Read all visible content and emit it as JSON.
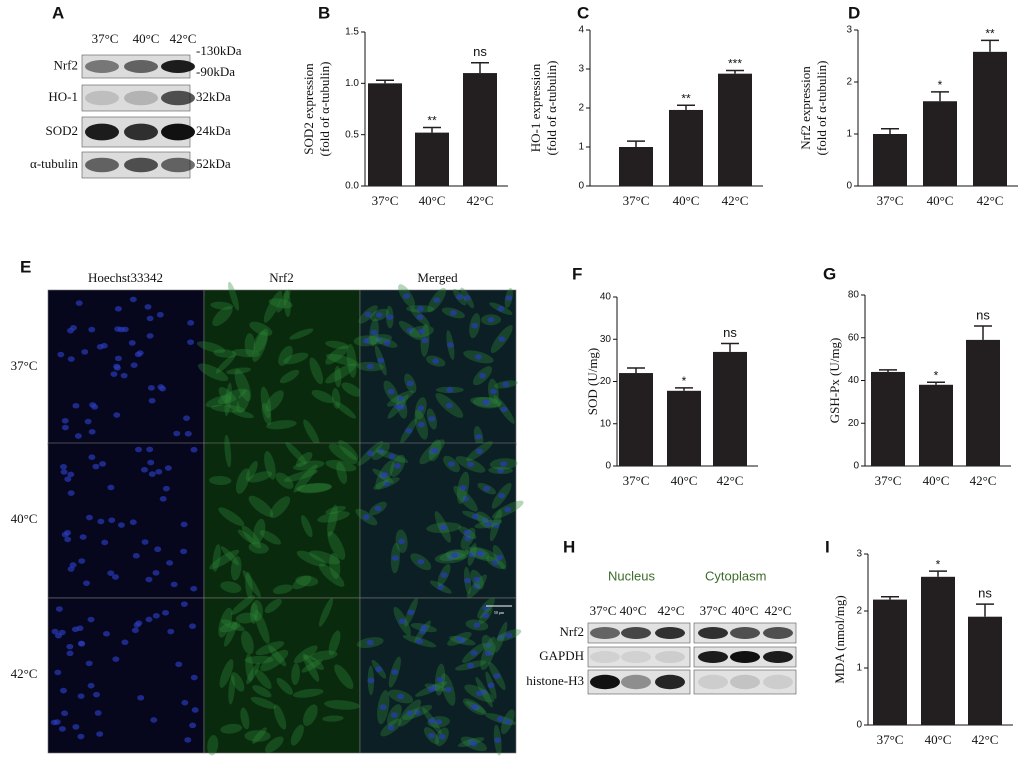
{
  "chart_data": [
    {
      "type": "bar",
      "label": "B",
      "ylabel": [
        "SOD2 expression",
        "(fold of α-tubulin)"
      ],
      "categories": [
        "37°C",
        "40°C",
        "42°C"
      ],
      "values": [
        1.0,
        0.52,
        1.1
      ],
      "errors": [
        0.03,
        0.05,
        0.1
      ],
      "significance": [
        null,
        "**",
        "ns"
      ],
      "color": "#231f20",
      "ylim": [
        0,
        1.5
      ],
      "yticks": [
        {
          "value": 0,
          "label": "0.0"
        },
        0.5,
        {
          "value": 1,
          "label": "1.0"
        },
        1.5
      ]
    },
    {
      "type": "bar",
      "label": "C",
      "ylabel": [
        "HO-1 expression",
        "(fold of α-tubulin)"
      ],
      "categories": [
        "37°C",
        "40°C",
        "42°C"
      ],
      "values": [
        1.0,
        1.95,
        2.88
      ],
      "errors": [
        0.15,
        0.12,
        0.08
      ],
      "significance": [
        null,
        "**",
        "***"
      ],
      "color": "#231f20",
      "ylim": [
        0,
        4
      ],
      "yticks": [
        0,
        1,
        2,
        3,
        4
      ]
    },
    {
      "type": "bar",
      "label": "D",
      "ylabel": [
        "Nrf2 expression",
        "(fold of α-tubulin)"
      ],
      "categories": [
        "37°C",
        "40°C",
        "42°C"
      ],
      "values": [
        1.0,
        1.63,
        2.58
      ],
      "errors": [
        0.1,
        0.18,
        0.22
      ],
      "significance": [
        null,
        "*",
        "**"
      ],
      "color": "#231f20",
      "ylim": [
        0,
        3
      ],
      "yticks": [
        0,
        1,
        2,
        3
      ]
    },
    {
      "type": "bar",
      "label": "F",
      "ylabel": [
        "SOD (U/mg)"
      ],
      "categories": [
        "37°C",
        "40°C",
        "42°C"
      ],
      "values": [
        22,
        17.8,
        27
      ],
      "errors": [
        1.2,
        0.7,
        2
      ],
      "significance": [
        null,
        "*",
        "ns"
      ],
      "color": "#231f20",
      "ylim": [
        0,
        40
      ],
      "yticks": [
        0,
        10,
        20,
        30,
        40
      ]
    },
    {
      "type": "bar",
      "label": "G",
      "ylabel": [
        "GSH-Px (U/mg)"
      ],
      "categories": [
        "37°C",
        "40°C",
        "42°C"
      ],
      "values": [
        44,
        38,
        59
      ],
      "errors": [
        1,
        1.2,
        6.5
      ],
      "significance": [
        null,
        "*",
        "ns"
      ],
      "color": "#231f20",
      "ylim": [
        0,
        80
      ],
      "yticks": [
        0,
        20,
        40,
        60,
        80
      ]
    },
    {
      "type": "bar",
      "label": "I",
      "ylabel": [
        "MDA (nmol/mg)"
      ],
      "categories": [
        "37°C",
        "40°C",
        "42°C"
      ],
      "values": [
        2.2,
        2.6,
        1.9
      ],
      "errors": [
        0.05,
        0.1,
        0.22
      ],
      "significance": [
        null,
        "*",
        "ns"
      ],
      "color": "#231f20",
      "ylim": [
        0,
        3
      ],
      "yticks": [
        0,
        1,
        2,
        3
      ]
    }
  ],
  "blot_a": {
    "label": "A",
    "lanes": [
      "37°C",
      "40°C",
      "42°C"
    ],
    "rows": [
      "Nrf2",
      "HO-1",
      "SOD2",
      "α-tubulin"
    ],
    "sizes": [
      "-130kDa",
      "-90kDa",
      "32kDa",
      "24kDa",
      "52kDa"
    ]
  },
  "imaging_e": {
    "label": "E",
    "columns": [
      "Hoechst33342",
      "Nrf2",
      "Merged"
    ],
    "rows": [
      "37°C",
      "40°C",
      "42°C"
    ],
    "scale": "50 μm"
  },
  "blot_h": {
    "label": "H",
    "groups": [
      "Nucleus",
      "Cytoplasm"
    ],
    "lanes": [
      "37°C",
      "40°C",
      "42°C"
    ],
    "rows": [
      "Nrf2",
      "GAPDH",
      "histone-H3"
    ]
  }
}
